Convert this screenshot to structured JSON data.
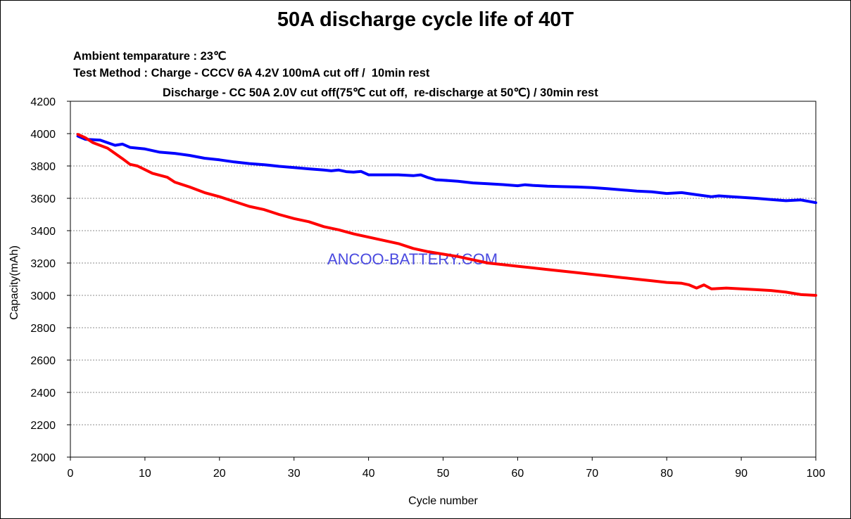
{
  "chart_data": {
    "type": "line",
    "title": "50A discharge cycle life of 40T",
    "conditions": {
      "ambient": "Ambient temparature : 23℃",
      "charge": "Test Method : Charge - CCCV 6A 4.2V 100mA cut off /  10min rest",
      "discharge": "Discharge - CC 50A 2.0V cut off(75℃ cut off,  re-discharge at 50℃) / 30min rest"
    },
    "xlabel": "Cycle number",
    "ylabel": "Capacity(mAh)",
    "xlim": [
      0,
      100
    ],
    "ylim": [
      2000,
      4200
    ],
    "xticks": [
      0,
      10,
      20,
      30,
      40,
      50,
      60,
      70,
      80,
      90,
      100
    ],
    "yticks": [
      2000,
      2200,
      2400,
      2600,
      2800,
      3000,
      3200,
      3400,
      3600,
      3800,
      4000,
      4200
    ],
    "grid": "horizontal dashed",
    "watermark": "ANCOO-BATTERY.COM",
    "series": [
      {
        "color": "#0000ff",
        "x": [
          1,
          2,
          4,
          6,
          7,
          8,
          10,
          12,
          14,
          16,
          18,
          20,
          22,
          24,
          26,
          28,
          30,
          32,
          34,
          35,
          36,
          37,
          38,
          39,
          40,
          42,
          44,
          46,
          47,
          48,
          49,
          50,
          52,
          54,
          56,
          58,
          60,
          61,
          62,
          64,
          66,
          68,
          70,
          72,
          74,
          76,
          78,
          80,
          82,
          84,
          86,
          87,
          88,
          90,
          92,
          94,
          96,
          98,
          100
        ],
        "y": [
          3985,
          3965,
          3960,
          3928,
          3935,
          3915,
          3905,
          3885,
          3878,
          3865,
          3848,
          3838,
          3825,
          3815,
          3808,
          3798,
          3790,
          3782,
          3775,
          3770,
          3775,
          3765,
          3762,
          3766,
          3745,
          3745,
          3745,
          3740,
          3745,
          3728,
          3715,
          3712,
          3705,
          3695,
          3690,
          3685,
          3678,
          3684,
          3680,
          3675,
          3672,
          3670,
          3666,
          3660,
          3652,
          3645,
          3640,
          3630,
          3635,
          3622,
          3610,
          3615,
          3612,
          3606,
          3600,
          3592,
          3585,
          3590,
          3573
        ]
      },
      {
        "color": "#ff0000",
        "x": [
          1,
          2,
          3,
          5,
          7,
          8,
          9,
          11,
          13,
          14,
          16,
          18,
          20,
          22,
          24,
          26,
          28,
          30,
          32,
          34,
          36,
          38,
          40,
          42,
          44,
          46,
          48,
          50,
          52,
          54,
          56,
          58,
          60,
          62,
          64,
          66,
          68,
          70,
          72,
          74,
          76,
          78,
          80,
          82,
          83,
          84,
          85,
          86,
          88,
          90,
          92,
          94,
          96,
          98,
          100
        ],
        "y": [
          3995,
          3975,
          3945,
          3910,
          3845,
          3810,
          3800,
          3755,
          3730,
          3700,
          3670,
          3635,
          3610,
          3580,
          3550,
          3530,
          3500,
          3475,
          3455,
          3425,
          3405,
          3380,
          3360,
          3340,
          3320,
          3290,
          3270,
          3255,
          3240,
          3220,
          3200,
          3190,
          3180,
          3170,
          3160,
          3150,
          3140,
          3130,
          3120,
          3110,
          3100,
          3090,
          3080,
          3075,
          3065,
          3045,
          3065,
          3040,
          3045,
          3040,
          3035,
          3030,
          3020,
          3005,
          3000
        ]
      }
    ]
  }
}
